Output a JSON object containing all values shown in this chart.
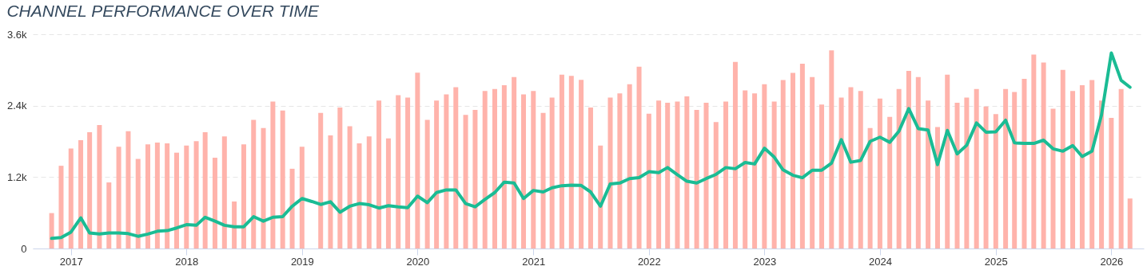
{
  "chart_data": {
    "type": "bar",
    "title": "CHANNEL PERFORMANCE OVER TIME",
    "x": [
      "2016-11",
      "2016-12",
      "2017-01",
      "2017-02",
      "2017-03",
      "2017-04",
      "2017-05",
      "2017-06",
      "2017-07",
      "2017-08",
      "2017-09",
      "2017-10",
      "2017-11",
      "2017-12",
      "2018-01",
      "2018-02",
      "2018-03",
      "2018-04",
      "2018-05",
      "2018-06",
      "2018-07",
      "2018-08",
      "2018-09",
      "2018-10",
      "2018-11",
      "2018-12",
      "2019-01",
      "2019-02",
      "2019-03",
      "2019-04",
      "2019-05",
      "2019-06",
      "2019-07",
      "2019-08",
      "2019-09",
      "2019-10",
      "2019-11",
      "2019-12",
      "2020-01",
      "2020-02",
      "2020-03",
      "2020-04",
      "2020-05",
      "2020-06",
      "2020-07",
      "2020-08",
      "2020-09",
      "2020-10",
      "2020-11",
      "2020-12",
      "2021-01",
      "2021-02",
      "2021-03",
      "2021-04",
      "2021-05",
      "2021-06",
      "2021-07",
      "2021-08",
      "2021-09",
      "2021-10",
      "2021-11",
      "2021-12",
      "2022-01",
      "2022-02",
      "2022-03",
      "2022-04",
      "2022-05",
      "2022-06",
      "2022-07",
      "2022-08",
      "2022-09",
      "2022-10",
      "2022-11",
      "2022-12",
      "2023-01",
      "2023-02",
      "2023-03",
      "2023-04",
      "2023-05",
      "2023-06",
      "2023-07",
      "2023-08",
      "2023-09",
      "2023-10",
      "2023-11",
      "2023-12",
      "2024-01",
      "2024-02",
      "2024-03",
      "2024-04",
      "2024-05",
      "2024-06",
      "2024-07",
      "2024-08",
      "2024-09",
      "2024-10",
      "2024-11",
      "2024-12",
      "2025-01",
      "2025-02",
      "2025-03",
      "2025-04",
      "2025-05",
      "2025-06",
      "2025-07",
      "2025-08",
      "2025-09",
      "2025-10",
      "2025-11",
      "2025-12",
      "2026-01",
      "2026-02",
      "2026-03"
    ],
    "xlim": [
      "2016-09-15",
      "2026-04-01"
    ],
    "xticks": [
      "2017",
      "2018",
      "2019",
      "2020",
      "2021",
      "2022",
      "2023",
      "2024",
      "2025",
      "2026"
    ],
    "ylim": [
      0,
      3600
    ],
    "yticks": [
      0,
      {
        "value": 1200,
        "label": "1.2k"
      },
      {
        "value": 2400,
        "label": "2.4k"
      },
      {
        "value": 3600,
        "label": "3.6k"
      }
    ],
    "grid": "y",
    "series": [
      {
        "color": "#ffb3ab",
        "values": [
          595,
          1390,
          1680,
          1820,
          1955,
          2075,
          1110,
          1710,
          1970,
          1505,
          1750,
          1780,
          1765,
          1610,
          1730,
          1805,
          1955,
          1525,
          1885,
          790,
          1750,
          2160,
          2025,
          2470,
          2320,
          1340,
          1710,
          null,
          2280,
          1900,
          2370,
          2055,
          1765,
          1885,
          2485,
          1850,
          2575,
          2535,
          2955,
          2160,
          2485,
          2590,
          2710,
          2245,
          2330,
          2645,
          2680,
          2745,
          2880,
          2590,
          2645,
          2280,
          2535,
          2920,
          2900,
          2835,
          2370,
          1730,
          2535,
          2605,
          2760,
          3055,
          2265,
          2485,
          2450,
          2470,
          2555,
          2330,
          2450,
          2125,
          2470,
          3135,
          2655,
          2605,
          2760,
          2470,
          2830,
          2950,
          3105,
          2880,
          2420,
          3330,
          2535,
          2710,
          2645,
          2025,
          2520,
          2210,
          2680,
          2985,
          2880,
          2485,
          2040,
          2920,
          2450,
          2535,
          2680,
          2385,
          2260,
          2680,
          2630,
          2850,
          3260,
          3125,
          2350,
          3000,
          2645,
          2745,
          2830,
          2485,
          2195,
          2680,
          840
        ]
      },
      {
        "type": "line",
        "color": "#1abc94",
        "values": [
          170,
          183,
          275,
          515,
          260,
          243,
          260,
          260,
          250,
          205,
          243,
          290,
          300,
          345,
          400,
          390,
          525,
          460,
          390,
          365,
          365,
          535,
          460,
          525,
          535,
          710,
          840,
          790,
          740,
          785,
          610,
          710,
          755,
          735,
          680,
          720,
          700,
          685,
          880,
          770,
          940,
          985,
          985,
          755,
          700,
          825,
          940,
          1115,
          1100,
          840,
          975,
          950,
          1020,
          1055,
          1065,
          1060,
          950,
          710,
          1085,
          1100,
          1175,
          1190,
          1290,
          1275,
          1360,
          1240,
          1130,
          1100,
          1175,
          1245,
          1360,
          1340,
          1445,
          1420,
          1685,
          1535,
          1320,
          1230,
          1190,
          1315,
          1315,
          1435,
          1830,
          1450,
          1480,
          1800,
          1870,
          1785,
          1970,
          2350,
          2015,
          1990,
          1410,
          1985,
          1590,
          1735,
          2110,
          1955,
          1960,
          2155,
          1775,
          1765,
          1765,
          1820,
          1675,
          1635,
          1730,
          1545,
          1635,
          2245,
          3285,
          2825,
          2710
        ]
      }
    ]
  }
}
